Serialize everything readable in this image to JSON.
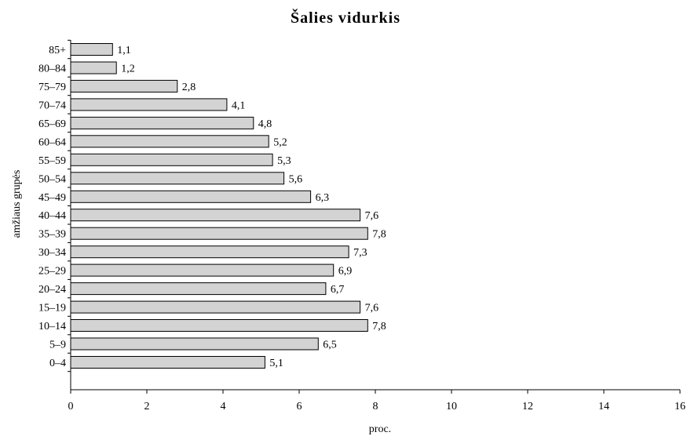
{
  "chart_data": {
    "type": "bar",
    "orientation": "horizontal",
    "title": "Šalies vidurkis",
    "xlabel": "proc.",
    "ylabel": "amžiaus grupės",
    "categories": [
      "85+",
      "80–84",
      "75–79",
      "70–74",
      "65–69",
      "60–64",
      "55–59",
      "50–54",
      "45–49",
      "40–44",
      "35–39",
      "30–34",
      "25–29",
      "20–24",
      "15–19",
      "10–14",
      "5–9",
      "0–4"
    ],
    "values": [
      1.1,
      1.2,
      2.8,
      4.1,
      4.8,
      5.2,
      5.3,
      5.6,
      6.3,
      7.6,
      7.8,
      7.3,
      6.9,
      6.7,
      7.6,
      7.8,
      6.5,
      5.1
    ],
    "value_labels": [
      "1,1",
      "1,2",
      "2,8",
      "4,1",
      "4,8",
      "5,2",
      "5,3",
      "5,6",
      "6,3",
      "7,6",
      "7,8",
      "7,3",
      "6,9",
      "6,7",
      "7,6",
      "7,8",
      "6,5",
      "5,1"
    ],
    "xlim": [
      0,
      16
    ],
    "xticks": [
      0,
      2,
      4,
      6,
      8,
      10,
      12,
      14,
      16
    ],
    "grid": false,
    "legend": "none",
    "colors": {
      "bar_fill": "#d3d3d3",
      "bar_stroke": "#000000"
    }
  }
}
